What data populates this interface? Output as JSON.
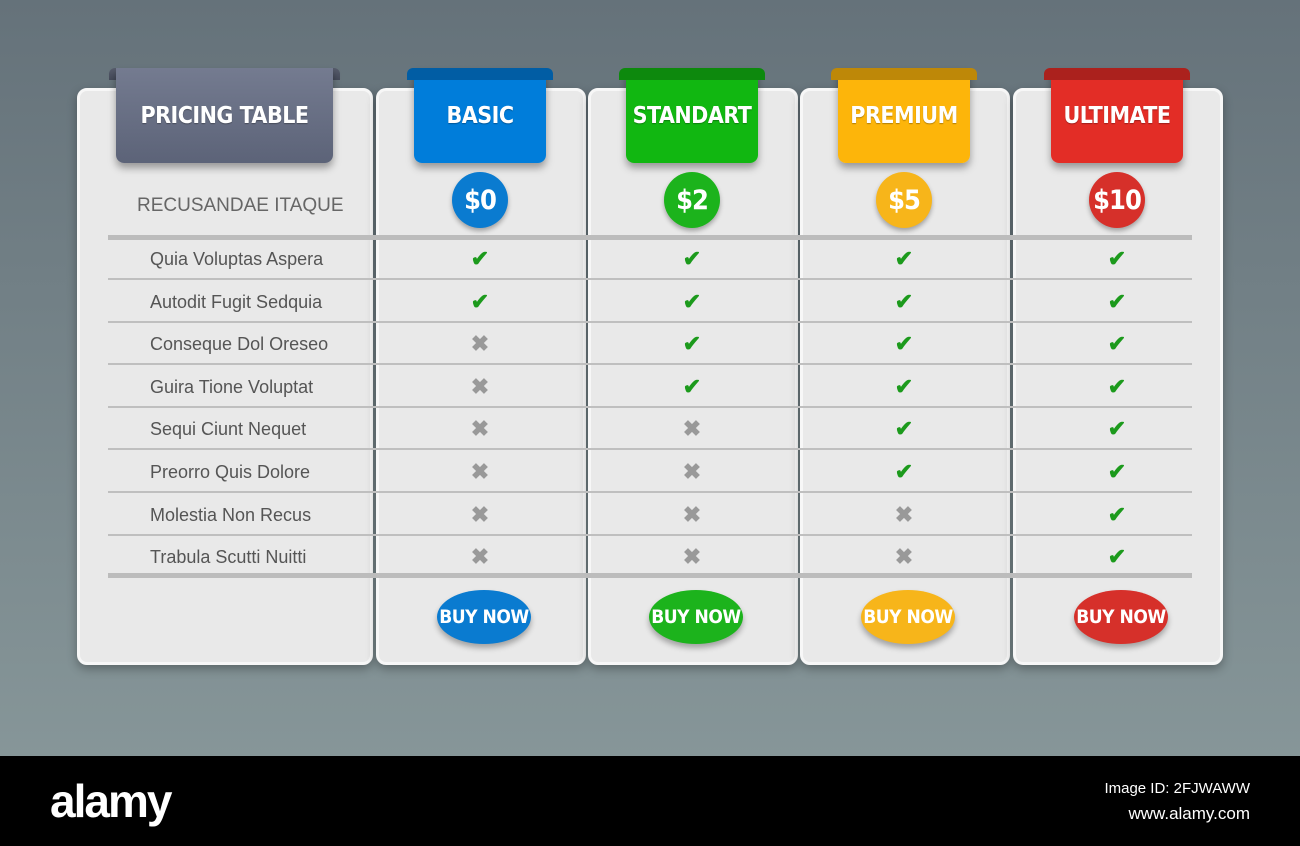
{
  "table": {
    "title": "PRICING TABLE",
    "section_label": "RECUSANDAE ITAQUE",
    "title_color": "#646b80"
  },
  "features": [
    "Quia Voluptas Aspera",
    "Autodit Fugit Sedquia",
    "Conseque Dol Oreseo",
    "Guira Tione Voluptat",
    "Sequi Ciunt Nequet",
    "Preorro Quis Dolore",
    "Molestia Non Recus",
    "Trabula Scutti Nuitti"
  ],
  "plans": [
    {
      "name": "BASIC",
      "price": "$0",
      "buy_label": "BUY NOW",
      "color": "#0a7bd0",
      "included": [
        true,
        true,
        false,
        false,
        false,
        false,
        false,
        false
      ]
    },
    {
      "name": "STANDART",
      "price": "$2",
      "buy_label": "BUY NOW",
      "color": "#1cb31c",
      "included": [
        true,
        true,
        true,
        true,
        false,
        false,
        false,
        false
      ]
    },
    {
      "name": "PREMIUM",
      "price": "$5",
      "buy_label": "BUY NOW",
      "color": "#f7b51a",
      "included": [
        true,
        true,
        true,
        true,
        true,
        true,
        false,
        false
      ]
    },
    {
      "name": "ULTIMATE",
      "price": "$10",
      "buy_label": "BUY NOW",
      "color": "#d6302a",
      "included": [
        true,
        true,
        true,
        true,
        true,
        true,
        true,
        true
      ]
    }
  ],
  "icons": {
    "included": "check-icon",
    "excluded": "cross-icon"
  },
  "footer": {
    "logo": "alamy",
    "image_id": "Image ID: 2FJWAWW",
    "url": "www.alamy.com"
  }
}
